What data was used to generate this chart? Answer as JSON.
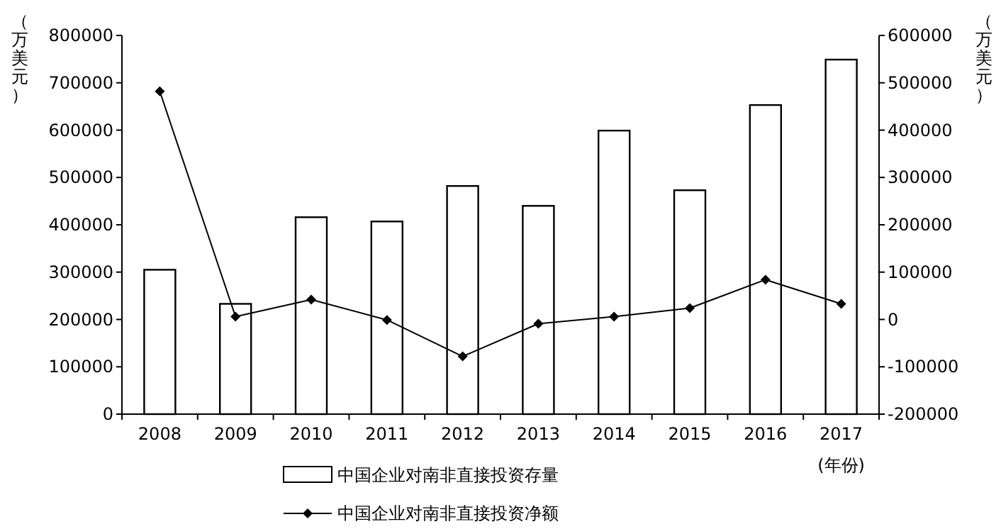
{
  "chart_data": {
    "type": "bar",
    "xlabel": "(年份)",
    "ylabel": "（万美元）",
    "y2label": "（万美元）",
    "categories": [
      "2008",
      "2009",
      "2010",
      "2011",
      "2012",
      "2013",
      "2014",
      "2015",
      "2016",
      "2017"
    ],
    "series": [
      {
        "name": "中国企业对南非直接投资存量",
        "color": "#ffffff",
        "values": [
          305000,
          233000,
          416000,
          407000,
          482000,
          440000,
          599000,
          473000,
          653000,
          749000
        ]
      },
      {
        "name": "中国企业对南非直接投资净额",
        "type": "line",
        "axis": "y2",
        "color": "#000000",
        "marker": "diamond",
        "values": [
          482000,
          6000,
          42000,
          -1000,
          -78000,
          -9000,
          6000,
          24000,
          84000,
          33000
        ]
      }
    ],
    "ylim": [
      0,
      800000
    ],
    "yticks": [
      0,
      100000,
      200000,
      300000,
      400000,
      500000,
      600000,
      700000,
      800000
    ],
    "y2lim": [
      -200000,
      600000
    ],
    "y2ticks": [
      -200000,
      -100000,
      0,
      100000,
      200000,
      300000,
      400000,
      500000,
      600000
    ],
    "legend": "bottom"
  }
}
